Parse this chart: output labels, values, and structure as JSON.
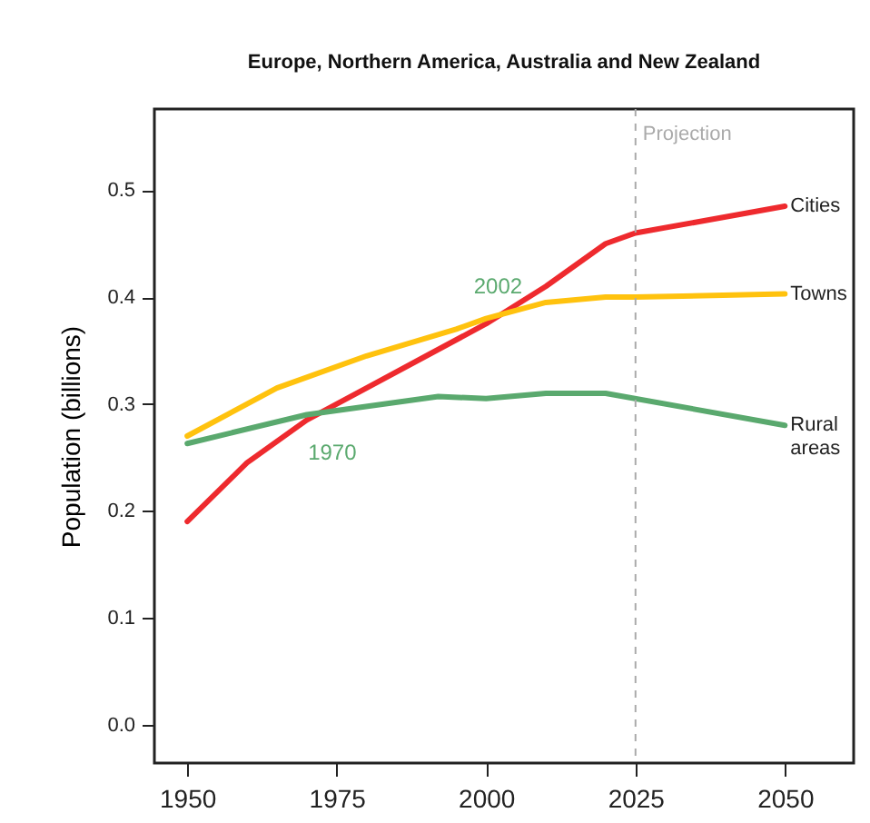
{
  "chart_data": {
    "type": "line",
    "title": "Europe, Northern America, Australia and New Zealand",
    "ylabel": "Population (billions)",
    "xlim": [
      1944.5,
      2061.5
    ],
    "ylim": [
      -0.036,
      0.576
    ],
    "xticks": [
      1950,
      1975,
      2000,
      2025,
      2050
    ],
    "yticks": [
      {
        "value": 0,
        "label": "0.0"
      },
      0.1,
      0.2,
      0.3,
      0.4,
      0.5
    ],
    "grid": false,
    "legend": false,
    "line_style": "solid",
    "marker": "none",
    "series": [
      {
        "name": "Cities",
        "color": "#ee2a2e",
        "x": [
          1950,
          1960,
          1970,
          1980,
          1990,
          2000,
          2010,
          2020,
          2025,
          2035,
          2050
        ],
        "values": [
          0.19,
          0.245,
          0.285,
          0.315,
          0.345,
          0.375,
          0.41,
          0.45,
          0.46,
          0.47,
          0.485
        ]
      },
      {
        "name": "Towns",
        "color": "#ffc20e",
        "x": [
          1950,
          1965,
          1980,
          1995,
          2000,
          2010,
          2020,
          2025,
          2050
        ],
        "values": [
          0.27,
          0.315,
          0.345,
          0.37,
          0.38,
          0.395,
          0.4,
          0.4,
          0.403
        ]
      },
      {
        "name": "Rural areas",
        "color": "#5aa96e",
        "x": [
          1950,
          1970,
          1992,
          2000,
          2010,
          2020,
          2050
        ],
        "values": [
          0.263,
          0.29,
          0.307,
          0.305,
          0.31,
          0.31,
          0.28
        ]
      }
    ],
    "ref_lines": [
      {
        "axis": "x",
        "value": 2025,
        "label": "Projection",
        "color": "#aaaaaa",
        "line_style": "dashed"
      }
    ],
    "annotations": [
      {
        "text": "1970",
        "x": 1970,
        "y": 0.285
      },
      {
        "text": "2002",
        "x": 2002,
        "y": 0.38
      }
    ]
  }
}
